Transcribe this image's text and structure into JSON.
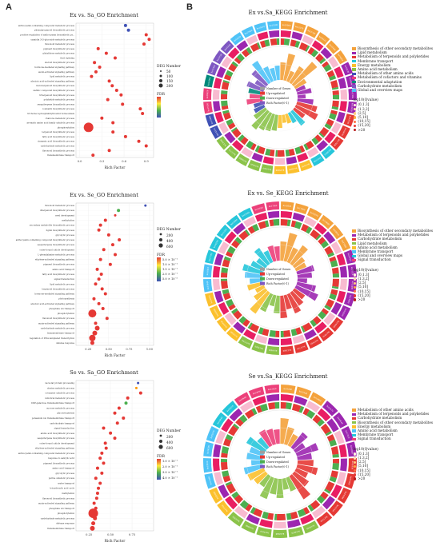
{
  "figure": {
    "panel_a": "A",
    "panel_b": "B"
  },
  "go_panels": [
    {
      "title": "Ex vs. Sa_GO Enrichment",
      "xlabel": "Rich Factor",
      "xticks": [
        "0.0",
        "0.3",
        "0.6",
        "0.9"
      ],
      "xlim": [
        -0.05,
        1.0
      ],
      "size_title": "DEG Number",
      "size_labels": [
        "50",
        "100",
        "150",
        "200"
      ],
      "fdr_title": "FDR",
      "fdr_labels": [
        "",
        "",
        ""
      ],
      "terms": [
        "anthocyanin-containing compound metabolic process",
        "phenylpropanoid biosynthetic process",
        "positive regulation of anthocyanin biosynthetic pr...",
        "cyanidin 3-O-glucoside metabolic process",
        "flavonoid metabolic process",
        "pigment biosynthetic process",
        "glutathione metabolic process",
        "fruit ripening",
        "steroid biosynthetic process",
        "hormone-mediated signaling pathway",
        "auxin-activated signaling pathway",
        "lipid metabolic process",
        "abscisic acid-activated signaling pathway",
        "monoterpenoid biosynthetic process",
        "olefinic compound biosynthetic process",
        "triterpenoid biosynthetic process",
        "polyketide metabolic process",
        "sesquiterpene biosynthetic process",
        "coumarin biosynthetic process",
        "trichome 4-phosphatidylinositol homeostasis",
        "chalcone metabolic process",
        "aromatic amino acid family catabolic process",
        "phosphorylation",
        "terpenoid biosynthetic process",
        "fatty acid biosynthetic process",
        "cinnamic acid biosynthetic process",
        "carbohydrate metabolic process",
        "flavonoid biosynthetic process",
        "transmembrane transport"
      ],
      "rich": [
        0.62,
        0.66,
        0.9,
        0.94,
        0.87,
        0.25,
        0.36,
        0.48,
        0.2,
        0.27,
        0.22,
        0.16,
        0.4,
        0.44,
        0.5,
        0.56,
        0.38,
        0.58,
        0.82,
        0.85,
        0.3,
        0.45,
        0.12,
        0.45,
        0.62,
        0.8,
        0.9,
        0.4,
        0.18
      ],
      "sizes": [
        2,
        2,
        2,
        2,
        2,
        2,
        2,
        2,
        2,
        2,
        2,
        2,
        2,
        2,
        2,
        2,
        2,
        2,
        2,
        2,
        2,
        2,
        6,
        2,
        2,
        2,
        2,
        2,
        2
      ],
      "colors": [
        "#3f51b5",
        "#3f51b5",
        "#e53935",
        "#e53935",
        "#e53935",
        "#e53935",
        "#e53935",
        "#e53935",
        "#e53935",
        "#e53935",
        "#e53935",
        "#e53935",
        "#e53935",
        "#e53935",
        "#e53935",
        "#e53935",
        "#e53935",
        "#e53935",
        "#e53935",
        "#e53935",
        "#e53935",
        "#e53935",
        "#e53935",
        "#e53935",
        "#e53935",
        "#e53935",
        "#e53935",
        "#e53935",
        "#e53935"
      ]
    },
    {
      "title": "Ex vs. Se_GO Enrichment",
      "xlabel": "Rich Factor",
      "xticks": [
        "0.25",
        "0.50",
        "0.75",
        "1.00"
      ],
      "xlim": [
        0.1,
        1.05
      ],
      "size_title": "DEG Number",
      "size_labels": [
        "200",
        "400",
        "600"
      ],
      "fdr_title": "FDR",
      "fdr_labels": [
        "5.0 × 10⁻¹",
        "1.0 × 10⁻¹",
        "1.5 × 10⁻¹",
        "2.0 × 10⁻¹",
        "5.0 × 10⁻²"
      ],
      "terms": [
        "flavonoid metabolic process",
        "diterpenoid biosynthetic process",
        "seed development",
        "methylation",
        "secondary metabolite biosynthetic process",
        "lignin biosynthetic process",
        "glycolytic process",
        "anthocyanin-containing compound biosynthetic process",
        "sesquiterpene biosynthetic process",
        "outer-bound cuticle development",
        "L-phenylalanine metabolic process",
        "ethylene-activated signaling pathway",
        "pigment biosynthetic process",
        "amino acid transport",
        "fatty acid biosynthetic process",
        "signal transduction",
        "lipid metabolic process",
        "terpenoid biosynthetic process",
        "hormone-mediated signaling pathway",
        "photosynthesis",
        "abscisic acid-activated signaling pathway",
        "phosphate ion transport",
        "phosphorylation",
        "flavonoid biosynthetic process",
        "auxin-activated signaling pathway",
        "carbohydrate metabolic process",
        "transmembrane transport",
        "regulation of DNA-templated transcription",
        "defense response"
      ],
      "rich": [
        0.95,
        0.62,
        0.58,
        0.46,
        0.4,
        0.38,
        0.5,
        0.63,
        0.55,
        0.44,
        0.58,
        0.4,
        0.52,
        0.36,
        0.41,
        0.38,
        0.34,
        0.42,
        0.46,
        0.32,
        0.38,
        0.43,
        0.3,
        0.48,
        0.34,
        0.36,
        0.33,
        0.3,
        0.3
      ],
      "sizes": [
        1.5,
        2,
        1.5,
        2,
        2,
        2,
        2,
        2,
        2,
        2,
        2,
        2,
        2,
        2,
        2,
        2,
        2,
        2,
        2,
        2,
        2,
        2,
        5,
        2,
        2,
        3,
        3,
        4,
        2.5
      ],
      "colors": [
        "#3f51b5",
        "#4caf50",
        "#e53935",
        "#e53935",
        "#e53935",
        "#e53935",
        "#e53935",
        "#e53935",
        "#e53935",
        "#e53935",
        "#e53935",
        "#e53935",
        "#e53935",
        "#e53935",
        "#e53935",
        "#e53935",
        "#e53935",
        "#e53935",
        "#e53935",
        "#e53935",
        "#e53935",
        "#e53935",
        "#e53935",
        "#e53935",
        "#e53935",
        "#e53935",
        "#e53935",
        "#e53935",
        "#e53935"
      ]
    },
    {
      "title": "Se vs. Sa_GO Enrichment",
      "xlabel": "Rich Factor",
      "xticks": [
        "0.25",
        "0.50",
        "0.75"
      ],
      "xlim": [
        0.1,
        1.0
      ],
      "size_title": "DEG Number",
      "size_labels": [
        "200",
        "400",
        "600"
      ],
      "fdr_title": "FDR",
      "fdr_labels": [
        "1.0 × 10⁻¹",
        "2.0 × 10⁻¹",
        "3.0 × 10⁻¹",
        "4.0 × 10⁻¹"
      ],
      "terms": [
        "vacuolar protein processing",
        "sterine metabolic process",
        "coenzyme catabolic process",
        "isbiotical metabolic process",
        "UDP-galactose transmembrane transport",
        "sucrose metabolic process",
        "gluconeogenesis",
        "potassium ion transmembrane transport",
        "carbohydrate transport",
        "signal transduction",
        "amino acid biosynthetic process",
        "sesquiterpene biosynthetic process",
        "outer-bound cuticle development",
        "ethylene-activated signaling pathway",
        "anthocyanin-containing compound metabolic process",
        "response to salicylic acid",
        "pigment biosynthetic process",
        "amino acid transport",
        "glycolytic process",
        "purine catabolic process",
        "water transport",
        "tricarboxylic acid cycle",
        "methylation",
        "flavonoid biosynthetic process",
        "auxin-activated signaling pathway",
        "phosphate ion transport",
        "phosphorylation",
        "carbohydrate metabolic process",
        "defense response",
        "transmembrane transport"
      ],
      "rich": [
        0.82,
        0.8,
        0.85,
        0.7,
        0.68,
        0.6,
        0.55,
        0.65,
        0.58,
        0.42,
        0.5,
        0.55,
        0.44,
        0.45,
        0.4,
        0.38,
        0.42,
        0.35,
        0.4,
        0.33,
        0.38,
        0.36,
        0.35,
        0.34,
        0.31,
        0.33,
        0.3,
        0.32,
        0.3,
        0.29
      ],
      "sizes": [
        1.5,
        1.5,
        2,
        2,
        2,
        2,
        2,
        2,
        2,
        2,
        2,
        2,
        2,
        2,
        2,
        2,
        2,
        2,
        2,
        2,
        2,
        2,
        2,
        2,
        2,
        2,
        6,
        2.5,
        2.5,
        3
      ],
      "colors": [
        "#3f51b5",
        "#ff9800",
        "#e53935",
        "#e53935",
        "#4caf50",
        "#e53935",
        "#e53935",
        "#e53935",
        "#e53935",
        "#e53935",
        "#e53935",
        "#e53935",
        "#e53935",
        "#e53935",
        "#e53935",
        "#e53935",
        "#e53935",
        "#e53935",
        "#e53935",
        "#e53935",
        "#e53935",
        "#e53935",
        "#e53935",
        "#e53935",
        "#e53935",
        "#e53935",
        "#e53935",
        "#e53935",
        "#e53935",
        "#e53935"
      ]
    }
  ],
  "kegg_panels": [
    {
      "title": "Ex vs.Sa_KEGG Enrichment",
      "categories": [
        "Biosynthesis of other secondary metabolites",
        "Lipid metabolism",
        "Metabolism of terpenoids and polyketides",
        "Membrane transport",
        "Energy metabolism",
        "Amino acid metabolism",
        "Metabolism of other amino acids",
        "Metabolism of cofactors and vitamins",
        "Environmental adaptation",
        "Carbohydrate metabolism",
        "Global and overview maps"
      ],
      "cat_colors": [
        "#f4a23c",
        "#9c27b0",
        "#e53935",
        "#26c6da",
        "#fbc02d",
        "#8bc34a",
        "#3f51b5",
        "#ec407a",
        "#00897b",
        "#7e57c2",
        "#4fc3f7"
      ],
      "sector_counts": [
        6,
        4,
        3,
        2,
        3,
        5,
        2,
        2,
        1,
        3,
        4
      ],
      "bar_values": [
        0.55,
        0.85,
        0.35,
        0.6,
        0.95,
        0.4,
        0.3,
        0.45,
        0.25,
        0.5,
        0.65,
        0.75,
        0.4,
        0.55,
        0.35,
        0.3,
        0.25,
        0.4,
        0.5,
        0.55,
        0.6,
        0.7,
        0.45,
        0.35,
        0.3,
        0.5,
        0.4,
        0.45,
        0.55,
        0.35,
        0.6,
        0.8,
        0.5,
        0.4,
        0.45
      ]
    },
    {
      "title": "Ex vs. Se_KEGG Enrichment",
      "categories": [
        "Biosynthesis of other secondary metabolites",
        "Metabolism of terpenoids and polyketides",
        "Carbohydrate metabolism",
        "Lipid metabolism",
        "Amino acid metabolism",
        "Membrane transport",
        "Global and overview maps",
        "Signal transduction"
      ],
      "cat_colors": [
        "#f4a23c",
        "#9c27b0",
        "#e53935",
        "#8bc34a",
        "#fbc02d",
        "#4fc3f7",
        "#26c6da",
        "#ec407a"
      ],
      "sector_counts": [
        6,
        5,
        5,
        3,
        4,
        2,
        5,
        2
      ],
      "bar_values": [
        0.6,
        0.9,
        0.5,
        0.7,
        0.4,
        0.35,
        0.55,
        0.45,
        0.3,
        0.6,
        0.75,
        0.4,
        0.5,
        0.65,
        0.45,
        0.7,
        0.55,
        0.35,
        0.6,
        0.8,
        0.45,
        0.3,
        0.5,
        0.4,
        0.55,
        0.65,
        0.45,
        0.35,
        0.6,
        0.4,
        0.5,
        0.45
      ]
    },
    {
      "title": "Se vs.Sa_KEGG Enrichment",
      "categories": [
        "Metabolism of other amino acids",
        "Metabolism of terpenoids and polyketides",
        "Carbohydrate metabolism",
        "Biosynthesis of other secondary metabolites",
        "Energy metabolism",
        "Amino acid metabolism",
        "Membrane transport",
        "Signal transduction"
      ],
      "cat_colors": [
        "#f4a23c",
        "#9c27b0",
        "#e53935",
        "#8bc34a",
        "#fbc02d",
        "#4fc3f7",
        "#26c6da",
        "#ec407a"
      ],
      "sector_counts": [
        3,
        4,
        5,
        6,
        2,
        4,
        2,
        3
      ],
      "bar_values": [
        0.8,
        0.55,
        0.4,
        0.6,
        0.35,
        0.7,
        0.45,
        0.5,
        0.65,
        0.4,
        0.55,
        0.85,
        0.45,
        0.35,
        0.6,
        0.5,
        0.7,
        0.4,
        0.45,
        0.55,
        0.6,
        0.35,
        0.5,
        0.45,
        0.65,
        0.4,
        0.55,
        0.5,
        0.45
      ]
    }
  ],
  "kegg_inner_legend": [
    "Number of Genes",
    "Up-regulated",
    "Down-regulated",
    "Rich Factor(0-1)"
  ],
  "kegg_inner_legend_colors": [
    "#9e9e9e",
    "#e53935",
    "#4caf50",
    "#7e57c2"
  ],
  "kegg_pval_title": "-log10(Qvalue)",
  "kegg_pval_labels": [
    "(0,1.3]",
    "(1.3,2]",
    "(2,5]",
    "(5,10]",
    "(10,15]",
    "(15,20]",
    ">20"
  ],
  "kegg_pval_colors": [
    "#fff3e0",
    "#ffe0b2",
    "#ffcc80",
    "#ffab40",
    "#ff7043",
    "#e53935",
    "#b71c1c"
  ]
}
